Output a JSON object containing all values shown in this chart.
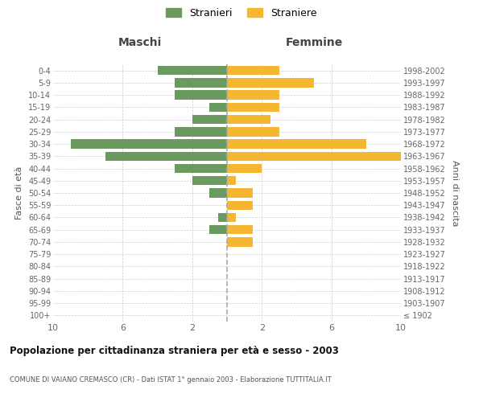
{
  "age_groups": [
    "100+",
    "95-99",
    "90-94",
    "85-89",
    "80-84",
    "75-79",
    "70-74",
    "65-69",
    "60-64",
    "55-59",
    "50-54",
    "45-49",
    "40-44",
    "35-39",
    "30-34",
    "25-29",
    "20-24",
    "15-19",
    "10-14",
    "5-9",
    "0-4"
  ],
  "birth_years": [
    "≤ 1902",
    "1903-1907",
    "1908-1912",
    "1913-1917",
    "1918-1922",
    "1923-1927",
    "1928-1932",
    "1933-1937",
    "1938-1942",
    "1943-1947",
    "1948-1952",
    "1953-1957",
    "1958-1962",
    "1963-1967",
    "1968-1972",
    "1973-1977",
    "1978-1982",
    "1983-1987",
    "1988-1992",
    "1993-1997",
    "1998-2002"
  ],
  "maschi": [
    0,
    0,
    0,
    0,
    0,
    0,
    0,
    1,
    0.5,
    0,
    1,
    2,
    3,
    7,
    9,
    3,
    2,
    1,
    3,
    3,
    4
  ],
  "femmine": [
    0,
    0,
    0,
    0,
    0,
    0,
    1.5,
    1.5,
    0.5,
    1.5,
    1.5,
    0.5,
    2,
    10,
    8,
    3,
    2.5,
    3,
    3,
    5,
    3
  ],
  "color_maschi": "#6a9a5f",
  "color_femmine": "#f5b731",
  "title": "Popolazione per cittadinanza straniera per età e sesso - 2003",
  "subtitle": "COMUNE DI VAIANO CREMASCO (CR) - Dati ISTAT 1° gennaio 2003 - Elaborazione TUTTITALIA.IT",
  "ylabel_left": "Fasce di età",
  "ylabel_right": "Anni di nascita",
  "header_maschi": "Maschi",
  "header_femmine": "Femmine",
  "legend_maschi": "Stranieri",
  "legend_femmine": "Straniere",
  "xlim": 10,
  "background_color": "#ffffff",
  "grid_color": "#cccccc"
}
